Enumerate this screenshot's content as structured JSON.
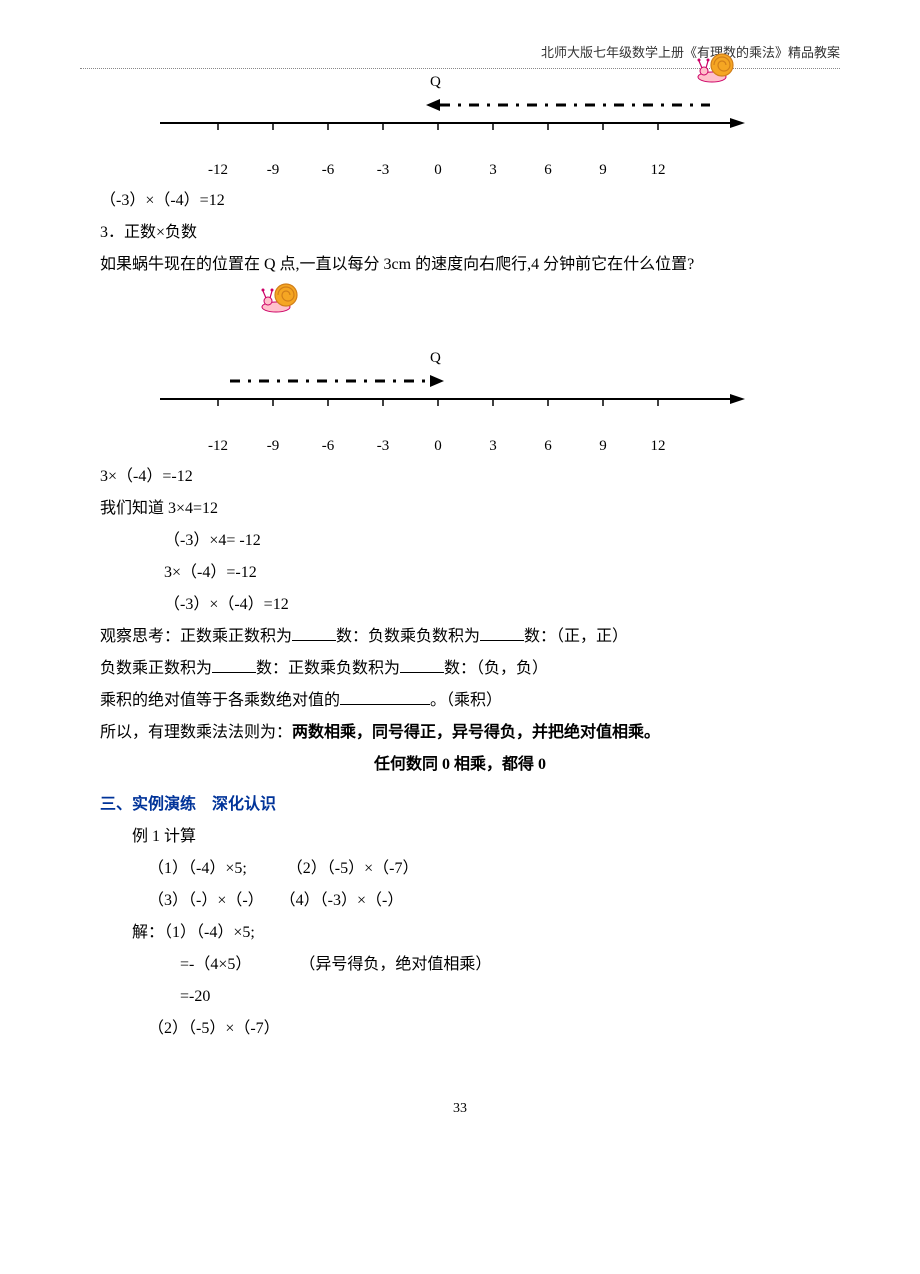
{
  "header": "北师大版七年级数学上册《有理数的乘法》精品教案",
  "pageNumber": "33",
  "fig1": {
    "qLabel": "Q",
    "ticks": [
      "-12",
      "-9",
      "-6",
      "-3",
      "0",
      "3",
      "6",
      "9",
      "12"
    ],
    "tickStart": 78,
    "tickSpacing": 55,
    "axisColor": "#000000",
    "dashedColor": "#000000",
    "dashedStartX": 300,
    "dashedEndX": 570,
    "arrowDir": "left",
    "qX": 296,
    "snailX": 576,
    "snailBody": "#ffc0cb",
    "snailShell": "#f5a623",
    "snailShellSpiral": "#d17f1a"
  },
  "eq1": "（-3）×（-4）=12",
  "line2": "3．正数×负数",
  "line3": "如果蜗牛现在的位置在 Q 点,一直以每分 3cm 的速度向右爬行,4 分钟前它在什么位置?",
  "snail2": {
    "snailBody": "#ffc0cb",
    "snailShell": "#f5a623",
    "snailShellSpiral": "#d17f1a"
  },
  "fig2": {
    "qLabel": "Q",
    "ticks": [
      "-12",
      "-9",
      "-6",
      "-3",
      "0",
      "3",
      "6",
      "9",
      "12"
    ],
    "tickStart": 78,
    "tickSpacing": 55,
    "axisColor": "#000000",
    "dashedColor": "#000000",
    "dashedStartX": 90,
    "dashedEndX": 290,
    "arrowDir": "right",
    "qX": 296
  },
  "eq2": "3×（-4）=-12",
  "line4": "我们知道 3×4=12",
  "eq3": "（-3）×4= -12",
  "eq4": "3×（-4）=-12",
  "eq5": "（-3）×（-4）=12",
  "line5a": "观察思考：正数乘正数积为",
  "line5b": "数：负数乘负数积为",
  "line5c": "数：（正，正）",
  "line6a": "负数乘正数积为",
  "line6b": "数：正数乘负数积为",
  "line6c": "数：（负，负）",
  "line7a": "乘积的绝对值等于各乘数绝对值的",
  "line7b": "。（乘积）",
  "line8a": "所以，有理数乘法法则为：",
  "line8b": "两数相乘，同号得正，异号得负，并把绝对值相乘。",
  "line9": "任何数同 0 相乘，都得 0",
  "sectionTitle": "三、实例演练　深化认识",
  "ex1": "例 1 计算",
  "ex1_1": "（1）（-4）×5;　　　（2）（-5）×（-7）",
  "ex1_2": "（3）（-）×（-）　　（4）（-3）×（-）",
  "sol1": "解：（1）（-4）×5;",
  "sol1a": "=-（4×5）　　　　（异号得负，绝对值相乘）",
  "sol1b": "=-20",
  "sol2": "（2）（-5）×（-7）",
  "blankWidthShort": 44,
  "blankWidthLong": 90
}
